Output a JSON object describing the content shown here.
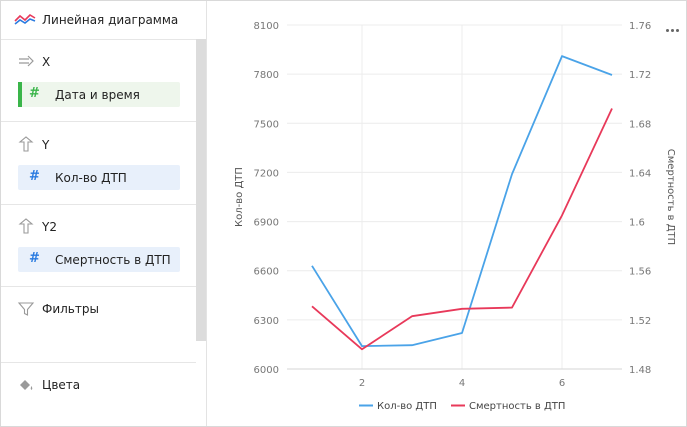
{
  "sidebar": {
    "header_title": "Линейная диаграмма",
    "sections": {
      "x": {
        "label": "X",
        "field": "Дата и время"
      },
      "y": {
        "label": "Y",
        "field": "Кол-во ДТП"
      },
      "y2": {
        "label": "Y2",
        "field": "Смертность в ДТП"
      },
      "filters": {
        "label": "Фильтры"
      },
      "colors": {
        "label": "Цвета"
      }
    }
  },
  "chart_data": {
    "type": "line",
    "x": [
      1,
      2,
      3,
      4,
      5,
      6,
      7
    ],
    "xticks": [
      "2",
      "4",
      "6"
    ],
    "yticks": [
      "6000",
      "6300",
      "6600",
      "6900",
      "7200",
      "7500",
      "7800",
      "8100"
    ],
    "y2ticks": [
      "1.48",
      "1.52",
      "1.56",
      "1.6",
      "1.64",
      "1.68",
      "1.72",
      "1.76"
    ],
    "ylabel": "Кол-во ДТП",
    "y2label": "Смертность в ДТП",
    "ylim": [
      6000,
      8100
    ],
    "y2lim": [
      1.48,
      1.76
    ],
    "series": [
      {
        "name": "Кол-во ДТП",
        "axis": "left",
        "color": "#4aa3e8",
        "values": [
          6630,
          6140,
          6145,
          6220,
          7190,
          7910,
          7795
        ]
      },
      {
        "name": "Смертность в ДТП",
        "axis": "right",
        "color": "#e8395a",
        "values": [
          1.531,
          1.496,
          1.523,
          1.529,
          1.53,
          1.605,
          1.692
        ]
      }
    ],
    "legend_position": "bottom",
    "grid": true
  }
}
